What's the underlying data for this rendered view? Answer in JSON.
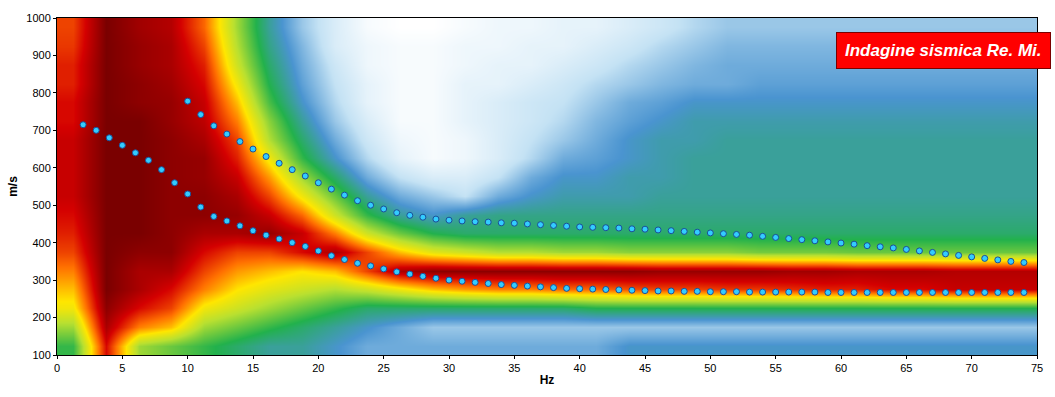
{
  "chart_data": {
    "type": "heatmap",
    "title": "Indagine sismica Re. Mi.",
    "x_label": "Hz",
    "y_label": "m/s",
    "xlim": [
      0,
      75
    ],
    "ylim": [
      100,
      1000
    ],
    "xticks": [
      0,
      5,
      10,
      15,
      20,
      25,
      30,
      35,
      40,
      45,
      50,
      55,
      60,
      65,
      70,
      75
    ],
    "yticks": [
      100,
      200,
      300,
      400,
      500,
      600,
      700,
      800,
      900,
      1000
    ],
    "grid": true,
    "cells": {
      "x": [
        1.25,
        3.75,
        6.25,
        8.75,
        11.25,
        13.75,
        16.25,
        18.75,
        21.25,
        23.75,
        26.25,
        28.75,
        31.25,
        33.75,
        36.25,
        38.75,
        41.25,
        43.75,
        46.25,
        48.75,
        51.25,
        53.75,
        56.25,
        58.75,
        61.25,
        63.75,
        66.25,
        68.75,
        71.25,
        73.75
      ],
      "y": [
        125,
        175,
        225,
        275,
        325,
        375,
        425,
        475,
        525,
        575,
        625,
        675,
        725,
        775,
        825,
        875,
        925,
        975
      ],
      "z": [
        [
          50,
          90,
          60,
          55,
          50,
          45,
          40,
          40,
          35,
          30,
          30,
          30,
          30,
          30,
          30,
          30,
          30,
          35,
          35,
          35,
          35,
          35,
          35,
          35,
          35,
          35,
          35,
          35,
          35,
          35
        ],
        [
          60,
          95,
          80,
          75,
          60,
          55,
          50,
          45,
          40,
          35,
          30,
          25,
          25,
          25,
          25,
          25,
          25,
          25,
          25,
          25,
          25,
          25,
          25,
          25,
          25,
          25,
          25,
          25,
          25,
          25
        ],
        [
          70,
          98,
          90,
          85,
          70,
          65,
          60,
          55,
          50,
          45,
          45,
          45,
          45,
          45,
          45,
          45,
          48,
          48,
          48,
          48,
          48,
          48,
          48,
          48,
          48,
          48,
          48,
          48,
          48,
          48
        ],
        [
          75,
          100,
          95,
          90,
          80,
          72,
          68,
          65,
          62,
          65,
          70,
          75,
          78,
          80,
          80,
          82,
          82,
          84,
          85,
          85,
          86,
          86,
          87,
          88,
          88,
          90,
          90,
          92,
          92,
          92
        ],
        [
          80,
          100,
          95,
          95,
          85,
          78,
          75,
          72,
          75,
          85,
          95,
          98,
          98,
          98,
          98,
          98,
          98,
          98,
          97,
          97,
          97,
          97,
          96,
          96,
          95,
          95,
          95,
          94,
          94,
          94
        ],
        [
          85,
          100,
          98,
          98,
          90,
          85,
          85,
          90,
          95,
          85,
          75,
          68,
          65,
          62,
          62,
          60,
          60,
          58,
          58,
          58,
          58,
          56,
          56,
          56,
          55,
          55,
          55,
          55,
          55,
          55
        ],
        [
          88,
          100,
          100,
          98,
          95,
          95,
          97,
          92,
          80,
          65,
          55,
          48,
          45,
          45,
          45,
          45,
          45,
          45,
          45,
          45,
          45,
          45,
          45,
          45,
          45,
          45,
          45,
          45,
          45,
          45
        ],
        [
          90,
          100,
          100,
          98,
          98,
          97,
          92,
          82,
          65,
          50,
          40,
          35,
          40,
          42,
          42,
          42,
          42,
          42,
          42,
          42,
          42,
          42,
          42,
          42,
          42,
          42,
          42,
          42,
          42,
          42
        ],
        [
          92,
          100,
          100,
          98,
          98,
          95,
          85,
          70,
          55,
          40,
          30,
          25,
          20,
          30,
          35,
          38,
          38,
          38,
          40,
          40,
          40,
          40,
          40,
          40,
          40,
          40,
          40,
          40,
          40,
          40
        ],
        [
          92,
          100,
          100,
          98,
          97,
          92,
          78,
          60,
          45,
          30,
          20,
          15,
          15,
          20,
          30,
          35,
          35,
          38,
          38,
          40,
          40,
          40,
          40,
          40,
          40,
          40,
          40,
          40,
          40,
          40
        ],
        [
          92,
          100,
          100,
          98,
          97,
          88,
          70,
          50,
          35,
          22,
          12,
          8,
          10,
          15,
          22,
          30,
          32,
          35,
          38,
          40,
          40,
          40,
          40,
          40,
          40,
          40,
          40,
          40,
          40,
          40
        ],
        [
          92,
          100,
          100,
          98,
          95,
          85,
          62,
          45,
          30,
          18,
          10,
          8,
          10,
          15,
          20,
          25,
          30,
          35,
          38,
          38,
          40,
          40,
          40,
          40,
          40,
          40,
          40,
          40,
          40,
          40
        ],
        [
          90,
          100,
          100,
          97,
          93,
          80,
          58,
          40,
          25,
          15,
          8,
          8,
          12,
          15,
          18,
          22,
          28,
          32,
          35,
          38,
          38,
          38,
          38,
          38,
          38,
          38,
          38,
          38,
          38,
          38
        ],
        [
          90,
          100,
          98,
          97,
          92,
          75,
          52,
          35,
          22,
          12,
          8,
          8,
          12,
          15,
          18,
          20,
          25,
          30,
          32,
          35,
          35,
          35,
          35,
          35,
          35,
          35,
          35,
          35,
          35,
          35
        ],
        [
          88,
          100,
          98,
          96,
          90,
          70,
          48,
          32,
          20,
          12,
          8,
          8,
          12,
          12,
          15,
          18,
          22,
          25,
          28,
          30,
          30,
          32,
          32,
          32,
          32,
          32,
          32,
          32,
          32,
          32
        ],
        [
          88,
          100,
          97,
          95,
          88,
          65,
          45,
          30,
          18,
          10,
          8,
          8,
          10,
          12,
          12,
          15,
          18,
          22,
          25,
          28,
          30,
          30,
          30,
          30,
          30,
          30,
          30,
          30,
          30,
          30
        ],
        [
          86,
          100,
          97,
          95,
          85,
          62,
          42,
          28,
          15,
          10,
          8,
          8,
          10,
          10,
          12,
          12,
          15,
          18,
          22,
          25,
          28,
          28,
          28,
          28,
          28,
          28,
          28,
          28,
          28,
          28
        ],
        [
          85,
          100,
          96,
          94,
          82,
          60,
          40,
          25,
          15,
          8,
          6,
          6,
          8,
          10,
          10,
          12,
          12,
          15,
          18,
          22,
          25,
          25,
          25,
          25,
          25,
          25,
          25,
          25,
          25,
          25
        ]
      ]
    },
    "series": [
      {
        "type": "scatter",
        "color": "#33ccff",
        "marker": "circle",
        "x": [
          2,
          3,
          4,
          5,
          6,
          7,
          8,
          9,
          10,
          11,
          12,
          13,
          14,
          15,
          16,
          17,
          18,
          19,
          20,
          21,
          22,
          23,
          24,
          25,
          26,
          27,
          28,
          29,
          30,
          31,
          32,
          33,
          34,
          35,
          36,
          37,
          38,
          39,
          40,
          41,
          42,
          43,
          44,
          45,
          46,
          47,
          48,
          49,
          50,
          51,
          52,
          53,
          54,
          55,
          56,
          57,
          58,
          59,
          60,
          61,
          62,
          63,
          64,
          65,
          66,
          67,
          68,
          69,
          70,
          71,
          72,
          73,
          74
        ],
        "values": [
          715,
          700,
          680,
          660,
          640,
          620,
          595,
          560,
          530,
          495,
          470,
          458,
          445,
          432,
          420,
          410,
          400,
          390,
          378,
          365,
          355,
          345,
          338,
          330,
          322,
          316,
          310,
          305,
          300,
          297,
          294,
          291,
          288,
          286,
          284,
          282,
          280,
          278,
          277,
          276,
          275,
          274,
          273,
          272,
          271,
          271,
          270,
          270,
          269,
          269,
          269,
          268,
          268,
          268,
          268,
          268,
          268,
          267,
          267,
          267,
          267,
          267,
          267,
          267,
          267,
          267,
          267,
          267,
          267,
          267,
          267,
          267,
          267
        ]
      },
      {
        "type": "scatter",
        "color": "#33ccff",
        "marker": "circle",
        "x": [
          10,
          11,
          12,
          13,
          14,
          15,
          16,
          17,
          18,
          19,
          20,
          21,
          22,
          23,
          24,
          25,
          26,
          27,
          28,
          29,
          30,
          31,
          32,
          33,
          34,
          35,
          36,
          37,
          38,
          39,
          40,
          41,
          42,
          43,
          44,
          45,
          46,
          47,
          48,
          49,
          50,
          51,
          52,
          53,
          54,
          55,
          56,
          57,
          58,
          59,
          60,
          61,
          62,
          63,
          64,
          65,
          66,
          67,
          68,
          69,
          70,
          71,
          72,
          73,
          74
        ],
        "values": [
          778,
          742,
          712,
          690,
          670,
          650,
          630,
          612,
          595,
          578,
          560,
          543,
          527,
          512,
          500,
          490,
          480,
          473,
          468,
          463,
          460,
          458,
          456,
          455,
          453,
          452,
          450,
          448,
          446,
          444,
          442,
          441,
          440,
          439,
          437,
          436,
          434,
          432,
          430,
          428,
          426,
          424,
          422,
          420,
          417,
          414,
          411,
          408,
          405,
          402,
          399,
          396,
          392,
          389,
          386,
          382,
          378,
          374,
          370,
          366,
          362,
          358,
          354,
          350,
          347
        ]
      }
    ]
  }
}
